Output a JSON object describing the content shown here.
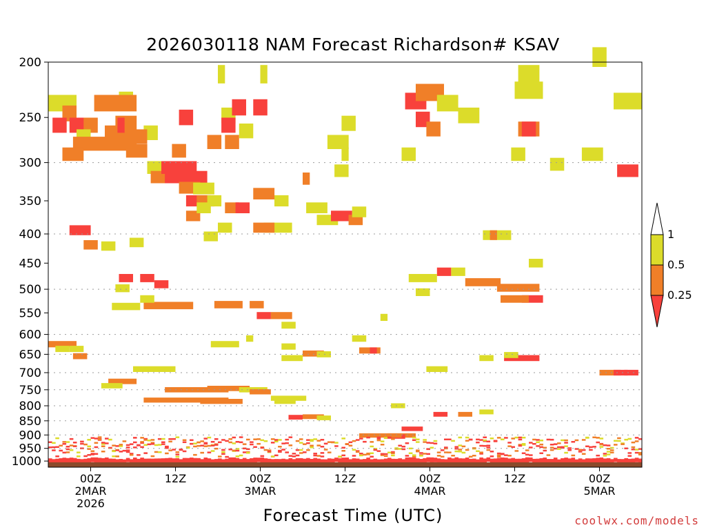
{
  "chart_data": {
    "type": "heatmap",
    "title": "2026030118 NAM Forecast Richardson# KSAV",
    "xlabel": "Forecast Time (UTC)",
    "ylabel": "",
    "credit": "coolwx.com/models",
    "y_ticks": [
      200,
      250,
      300,
      350,
      400,
      450,
      500,
      550,
      600,
      650,
      700,
      750,
      800,
      850,
      900,
      950,
      1000
    ],
    "y_gridlines": [
      300,
      400,
      500,
      600,
      650,
      700,
      750,
      800,
      850,
      900,
      950
    ],
    "x_ticks": [
      {
        "hour": 6,
        "lines": [
          "00Z",
          "2MAR",
          "2026"
        ]
      },
      {
        "hour": 18,
        "lines": [
          "12Z"
        ]
      },
      {
        "hour": 30,
        "lines": [
          "00Z",
          "3MAR"
        ]
      },
      {
        "hour": 42,
        "lines": [
          "12Z"
        ]
      },
      {
        "hour": 54,
        "lines": [
          "00Z",
          "4MAR"
        ]
      },
      {
        "hour": 66,
        "lines": [
          "12Z"
        ]
      },
      {
        "hour": 78,
        "lines": [
          "00Z",
          "5MAR"
        ]
      }
    ],
    "x_range_hours": [
      0,
      84
    ],
    "y_range_hPa": [
      200,
      1025
    ],
    "legend": {
      "levels": [
        "1",
        "0.5",
        "0.25"
      ],
      "colors": {
        "over_1": "#ffffff",
        "0.5_to_1": "#dcdc2a",
        "0.25_to_0.5": "#f07f28",
        "under_0.25": "#f8413c",
        "surface": "#8b4a2b"
      }
    },
    "cells": [
      [
        0.0,
        236,
        4,
        "y"
      ],
      [
        2.0,
        246,
        2,
        "o"
      ],
      [
        0.6,
        258,
        2,
        "r"
      ],
      [
        3.0,
        258,
        3,
        "r"
      ],
      [
        5.0,
        258,
        2,
        "o"
      ],
      [
        4.0,
        270,
        2,
        "y"
      ],
      [
        3.5,
        278,
        9,
        "o"
      ],
      [
        8.0,
        266,
        4,
        "o"
      ],
      [
        9.5,
        256,
        3,
        "o"
      ],
      [
        9.8,
        258,
        1,
        "r"
      ],
      [
        10,
        233,
        2,
        "y"
      ],
      [
        13.5,
        266,
        2,
        "y"
      ],
      [
        11.0,
        286,
        3,
        "o"
      ],
      [
        14.0,
        306,
        3,
        "y"
      ],
      [
        14.5,
        318,
        4,
        "o"
      ],
      [
        16.5,
        318,
        6,
        "r"
      ],
      [
        18.5,
        332,
        3,
        "o"
      ],
      [
        20.5,
        333,
        3,
        "y"
      ],
      [
        19.5,
        350,
        4,
        "r"
      ],
      [
        21.0,
        350,
        2,
        "o"
      ],
      [
        22.5,
        350,
        2,
        "y"
      ],
      [
        25.0,
        360,
        2,
        "o"
      ],
      [
        26.5,
        360,
        2,
        "r"
      ],
      [
        24.5,
        248,
        2,
        "y"
      ],
      [
        24.5,
        258,
        2,
        "r"
      ],
      [
        25.0,
        276,
        2,
        "o"
      ],
      [
        26.0,
        240,
        2,
        "r"
      ],
      [
        29.0,
        240,
        2,
        "r"
      ],
      [
        24.0,
        210,
        1,
        "y"
      ],
      [
        30.0,
        210,
        1,
        "y"
      ],
      [
        30.5,
        390,
        4,
        "y"
      ],
      [
        29.0,
        390,
        3,
        "o"
      ],
      [
        32.0,
        350,
        2,
        "y"
      ],
      [
        3.0,
        394,
        3,
        "r"
      ],
      [
        5.0,
        418,
        2,
        "o"
      ],
      [
        11.5,
        414,
        2,
        "y"
      ],
      [
        10.0,
        478,
        2,
        "r"
      ],
      [
        13.0,
        478,
        2,
        "r"
      ],
      [
        15.0,
        490,
        2,
        "r"
      ],
      [
        13.5,
        534,
        7,
        "o"
      ],
      [
        9.0,
        536,
        4,
        "y"
      ],
      [
        23.5,
        532,
        4,
        "o"
      ],
      [
        28.5,
        532,
        2,
        "o"
      ],
      [
        29.5,
        556,
        2,
        "r"
      ],
      [
        31.5,
        556,
        3,
        "o"
      ],
      [
        33.0,
        578,
        2,
        "y"
      ],
      [
        0.0,
        624,
        4,
        "o"
      ],
      [
        3.0,
        636,
        2,
        "y"
      ],
      [
        3.5,
        655,
        2,
        "o"
      ],
      [
        23.0,
        624,
        4,
        "y"
      ],
      [
        33.0,
        630,
        2,
        "y"
      ],
      [
        36.0,
        648,
        3,
        "o"
      ],
      [
        44.0,
        640,
        3,
        "o"
      ],
      [
        45.5,
        640,
        1,
        "r"
      ],
      [
        12.0,
        690,
        6,
        "y"
      ],
      [
        8.5,
        725,
        4,
        "o"
      ],
      [
        7.5,
        738,
        3,
        "y"
      ],
      [
        16.5,
        750,
        9,
        "o"
      ],
      [
        22.5,
        746,
        6,
        "o"
      ],
      [
        27.0,
        750,
        4,
        "y"
      ],
      [
        28.5,
        756,
        3,
        "o"
      ],
      [
        13.5,
        782,
        12,
        "o"
      ],
      [
        21.5,
        786,
        6,
        "o"
      ],
      [
        31.5,
        776,
        5,
        "y"
      ],
      [
        32.0,
        786,
        3,
        "y"
      ],
      [
        34.0,
        838,
        2,
        "r"
      ],
      [
        36.0,
        836,
        3,
        "o"
      ],
      [
        38.0,
        840,
        2,
        "y"
      ],
      [
        38.0,
        378,
        3,
        "y"
      ],
      [
        40.0,
        372,
        3,
        "r"
      ],
      [
        42.5,
        378,
        2,
        "o"
      ],
      [
        43.0,
        366,
        2,
        "y"
      ],
      [
        40.5,
        310,
        2,
        "y"
      ],
      [
        41.5,
        290,
        1,
        "y"
      ],
      [
        39.5,
        276,
        3,
        "y"
      ],
      [
        41.5,
        256,
        2,
        "y"
      ],
      [
        50.5,
        234,
        3,
        "r"
      ],
      [
        52.0,
        226,
        4,
        "o"
      ],
      [
        52.0,
        252,
        2,
        "r"
      ],
      [
        53.5,
        262,
        2,
        "o"
      ],
      [
        55.0,
        236,
        3,
        "y"
      ],
      [
        58.0,
        248,
        3,
        "y"
      ],
      [
        50.0,
        290,
        2,
        "y"
      ],
      [
        59.0,
        486,
        5,
        "o"
      ],
      [
        57.0,
        466,
        2,
        "y"
      ],
      [
        55.0,
        466,
        2,
        "r"
      ],
      [
        51.0,
        478,
        4,
        "y"
      ],
      [
        52.0,
        506,
        2,
        "y"
      ],
      [
        61.5,
        402,
        4,
        "y"
      ],
      [
        62.5,
        402,
        1,
        "o"
      ],
      [
        63.5,
        497,
        6,
        "o"
      ],
      [
        67.0,
        520,
        3,
        "r"
      ],
      [
        64.0,
        520,
        4,
        "o"
      ],
      [
        64.5,
        660,
        5,
        "r"
      ],
      [
        64.5,
        652,
        2,
        "y"
      ],
      [
        61.0,
        660,
        2,
        "y"
      ],
      [
        53.5,
        690,
        3,
        "y"
      ],
      [
        66.0,
        224,
        4,
        "y"
      ],
      [
        66.5,
        262,
        3,
        "o"
      ],
      [
        67.0,
        262,
        2,
        "r"
      ],
      [
        65.5,
        290,
        2,
        "y"
      ],
      [
        71.0,
        302,
        2,
        "y"
      ],
      [
        75.5,
        290,
        3,
        "y"
      ],
      [
        77.0,
        196,
        2,
        "y"
      ],
      [
        80.0,
        234,
        4,
        "y"
      ],
      [
        80.5,
        310,
        3,
        "r"
      ],
      [
        78.0,
        700,
        3,
        "o"
      ],
      [
        80.0,
        700,
        2,
        "r"
      ],
      [
        81.5,
        700,
        2,
        "r"
      ],
      [
        68.0,
        450,
        2,
        "y"
      ],
      [
        61.0,
        820,
        2,
        "y"
      ],
      [
        58.0,
        828,
        2,
        "o"
      ],
      [
        54.5,
        828,
        2,
        "r"
      ],
      [
        48.0,
        902,
        4,
        "o"
      ],
      [
        47.5,
        906,
        3,
        "r"
      ],
      [
        44.0,
        902,
        6,
        "o"
      ],
      [
        50.0,
        878,
        3,
        "r"
      ],
      [
        66.5,
        210,
        3,
        "y"
      ],
      [
        29.0,
        340,
        3,
        "o"
      ],
      [
        16.0,
        306,
        5,
        "r"
      ],
      [
        6.5,
        236,
        6,
        "o"
      ],
      [
        12.0,
        270,
        2,
        "o"
      ],
      [
        19.5,
        372,
        2,
        "o"
      ],
      [
        21.0,
        360,
        2,
        "y"
      ],
      [
        24.0,
        390,
        2,
        "y"
      ],
      [
        22.0,
        404,
        2,
        "y"
      ],
      [
        36.5,
        360,
        3,
        "y"
      ],
      [
        36.0,
        320,
        1,
        "o"
      ],
      [
        28.0,
        610,
        1,
        "y"
      ],
      [
        33.0,
        660,
        3,
        "y"
      ],
      [
        38.0,
        650,
        2,
        "y"
      ],
      [
        43.0,
        610,
        2,
        "y"
      ],
      [
        47.0,
        560,
        1,
        "y"
      ],
      [
        48.5,
        800,
        2,
        "y"
      ],
      [
        18.5,
        250,
        2,
        "r"
      ],
      [
        17.5,
        286,
        2,
        "o"
      ],
      [
        22.5,
        276,
        2,
        "o"
      ],
      [
        27.0,
        264,
        2,
        "y"
      ],
      [
        7.5,
        420,
        2,
        "y"
      ],
      [
        2.0,
        290,
        3,
        "o"
      ],
      [
        9.5,
        498,
        2,
        "y"
      ],
      [
        1.0,
        636,
        2,
        "y"
      ],
      [
        13.0,
        520,
        2,
        "y"
      ]
    ],
    "near_surface_note": "Dense shallow layer of values below 0.25 between 900 and 1000 hPa across the full forecast period"
  }
}
